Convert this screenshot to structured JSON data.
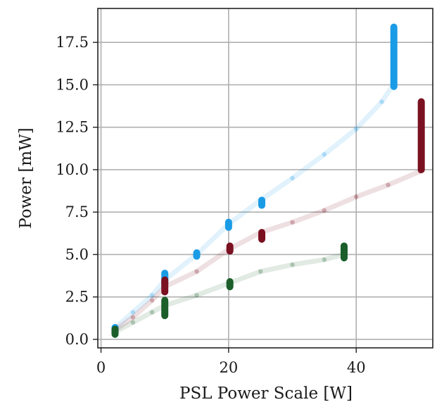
{
  "chart_data": {
    "type": "scatter",
    "title": "",
    "xlabel": "PSL Power Scale [W]",
    "ylabel": "Power [mW]",
    "xlim": [
      -0.5,
      52
    ],
    "ylim": [
      -0.5,
      19.5
    ],
    "xticks": [
      0,
      20,
      40
    ],
    "xtick_labels": [
      "0",
      "20",
      "40"
    ],
    "yticks": [
      0.0,
      2.5,
      5.0,
      7.5,
      10.0,
      12.5,
      15.0,
      17.5
    ],
    "ytick_labels": [
      "0.0",
      "2.5",
      "5.0",
      "7.5",
      "10.0",
      "12.5",
      "15.0",
      "17.5"
    ],
    "grid": true,
    "series": [
      {
        "color": "#1a9be6",
        "trace": [
          [
            2,
            0.6
          ],
          [
            5,
            1.6
          ],
          [
            8,
            2.6
          ],
          [
            10,
            3.5
          ],
          [
            15,
            5.0
          ],
          [
            20,
            6.8
          ],
          [
            25,
            8.2
          ],
          [
            30,
            9.5
          ],
          [
            35,
            10.9
          ],
          [
            40,
            12.4
          ],
          [
            44,
            14.0
          ],
          [
            45.8,
            15.0
          ]
        ],
        "clusters": [
          {
            "x": 2.2,
            "y_min": 0.4,
            "y_max": 0.7
          },
          {
            "x": 10,
            "y_min": 3.3,
            "y_max": 3.9
          },
          {
            "x": 15,
            "y_min": 4.9,
            "y_max": 5.1
          },
          {
            "x": 20,
            "y_min": 6.6,
            "y_max": 6.9
          },
          {
            "x": 25.2,
            "y_min": 7.9,
            "y_max": 8.2
          },
          {
            "x": 45.9,
            "y_min": 14.9,
            "y_max": 18.4
          }
        ]
      },
      {
        "color": "#7a1020",
        "trace": [
          [
            2,
            0.5
          ],
          [
            5,
            1.3
          ],
          [
            8,
            2.3
          ],
          [
            10,
            3.1
          ],
          [
            15,
            4.0
          ],
          [
            20,
            5.3
          ],
          [
            25,
            6.3
          ],
          [
            30,
            6.9
          ],
          [
            35,
            7.6
          ],
          [
            40,
            8.4
          ],
          [
            45,
            9.1
          ],
          [
            50,
            9.9
          ]
        ],
        "clusters": [
          {
            "x": 10,
            "y_min": 2.8,
            "y_max": 3.5
          },
          {
            "x": 20.2,
            "y_min": 5.2,
            "y_max": 5.5
          },
          {
            "x": 25.2,
            "y_min": 5.9,
            "y_max": 6.3
          },
          {
            "x": 50.2,
            "y_min": 10.0,
            "y_max": 14.0
          }
        ]
      },
      {
        "color": "#1b5e2a",
        "trace": [
          [
            2,
            0.4
          ],
          [
            5,
            1.0
          ],
          [
            8,
            1.6
          ],
          [
            10,
            2.0
          ],
          [
            15,
            2.6
          ],
          [
            20,
            3.3
          ],
          [
            25,
            4.0
          ],
          [
            30,
            4.4
          ],
          [
            35,
            4.7
          ],
          [
            38,
            5.0
          ]
        ],
        "clusters": [
          {
            "x": 2.2,
            "y_min": 0.3,
            "y_max": 0.6
          },
          {
            "x": 10,
            "y_min": 1.4,
            "y_max": 2.3
          },
          {
            "x": 20.2,
            "y_min": 3.1,
            "y_max": 3.4
          },
          {
            "x": 38.1,
            "y_min": 4.8,
            "y_max": 5.5
          }
        ]
      }
    ]
  }
}
